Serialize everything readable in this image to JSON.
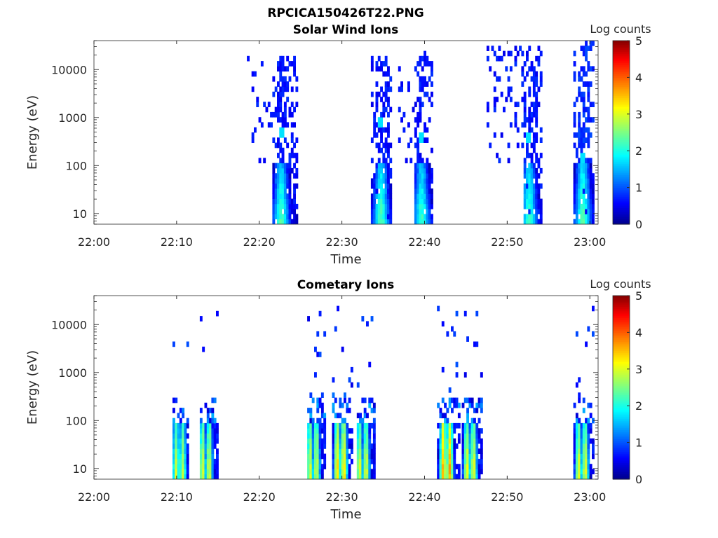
{
  "figure": {
    "title": "RPCICA150426T22.PNG"
  },
  "colormap": {
    "name": "jet",
    "stops": [
      "#00008f",
      "#0000ff",
      "#00ffff",
      "#ffff00",
      "#ff0000",
      "#800000"
    ]
  },
  "chart_data": [
    {
      "type": "heatmap",
      "title": "Solar Wind Ions",
      "xlabel": "Time",
      "ylabel": "Energy (eV)",
      "x_ticks": [
        "22:00",
        "22:10",
        "22:20",
        "22:30",
        "22:40",
        "22:50",
        "23:00"
      ],
      "x_tick_minutes": [
        0,
        10,
        20,
        30,
        40,
        50,
        60
      ],
      "xlim_minutes": [
        0,
        61
      ],
      "y_scale": "log",
      "y_ticks": [
        "10",
        "100",
        "1000",
        "10000"
      ],
      "y_tick_values": [
        10,
        100,
        1000,
        10000
      ],
      "ylim": [
        6,
        40000
      ],
      "colorbar": {
        "label": "Log counts",
        "ticks": [
          "0",
          "1",
          "2",
          "3",
          "4",
          "5"
        ],
        "range": [
          0,
          5
        ]
      },
      "bursts": [
        {
          "time": 22.5,
          "start": 21.5,
          "end": 24.5,
          "core_e": 25,
          "core_log": 1.9,
          "hi_e_max": 20000,
          "sparse_start": 18.5,
          "sparse_log": 0.45,
          "streak_e": 500
        },
        {
          "time": 34.6,
          "start": 33.5,
          "end": 36.0,
          "core_e": 25,
          "core_log": 1.95,
          "hi_e_max": 20000,
          "sparse_start": 33.8,
          "sparse_log": 0.45,
          "streak_e": 800
        },
        {
          "time": 39.5,
          "start": 38.6,
          "end": 41.0,
          "core_e": 25,
          "core_log": 1.85,
          "hi_e_max": 25000,
          "sparse_start": 36.8,
          "sparse_log": 0.45,
          "streak_e": 400
        },
        {
          "time": 52.5,
          "start": 51.8,
          "end": 54.0,
          "core_e": 30,
          "core_log": 1.8,
          "hi_e_max": 35000,
          "sparse_start": 47.5,
          "sparse_log": 0.45,
          "streak_e": 400
        },
        {
          "time": 59.0,
          "start": 58.0,
          "end": 60.5,
          "core_e": 30,
          "core_log": 1.95,
          "hi_e_max": 40000,
          "sparse_start": 58.0,
          "sparse_log": 0.6,
          "streak_e": 150
        }
      ]
    },
    {
      "type": "heatmap",
      "title": "Cometary Ions",
      "xlabel": "Time",
      "ylabel": "Energy (eV)",
      "x_ticks": [
        "22:00",
        "22:10",
        "22:20",
        "22:30",
        "22:40",
        "22:50",
        "23:00"
      ],
      "x_tick_minutes": [
        0,
        10,
        20,
        30,
        40,
        50,
        60
      ],
      "xlim_minutes": [
        0,
        61
      ],
      "y_scale": "log",
      "y_ticks": [
        "10",
        "100",
        "1000",
        "10000"
      ],
      "y_tick_values": [
        10,
        100,
        1000,
        10000
      ],
      "ylim": [
        6,
        40000
      ],
      "colorbar": {
        "label": "Log counts",
        "ticks": [
          "0",
          "1",
          "2",
          "3",
          "4",
          "5"
        ],
        "range": [
          0,
          5
        ]
      },
      "bursts": [
        {
          "time": 10.3,
          "start": 9.5,
          "end": 11.3,
          "peak_log": 2.9,
          "top_e": 300
        },
        {
          "time": 13.5,
          "start": 12.8,
          "end": 15.0,
          "peak_log": 3.0,
          "top_e": 300
        },
        {
          "time": 26.5,
          "start": 25.8,
          "end": 27.8,
          "peak_log": 3.0,
          "top_e": 400
        },
        {
          "time": 29.8,
          "start": 28.8,
          "end": 31.3,
          "peak_log": 3.4,
          "top_e": 400
        },
        {
          "time": 32.5,
          "start": 31.8,
          "end": 34.0,
          "peak_log": 3.0,
          "top_e": 300
        },
        {
          "time": 42.6,
          "start": 41.5,
          "end": 44.3,
          "peak_log": 3.6,
          "top_e": 300
        },
        {
          "time": 45.5,
          "start": 44.5,
          "end": 47.0,
          "peak_log": 3.1,
          "top_e": 300
        },
        {
          "time": 59.0,
          "start": 58.0,
          "end": 60.5,
          "peak_log": 3.0,
          "top_e": 300
        }
      ]
    }
  ]
}
